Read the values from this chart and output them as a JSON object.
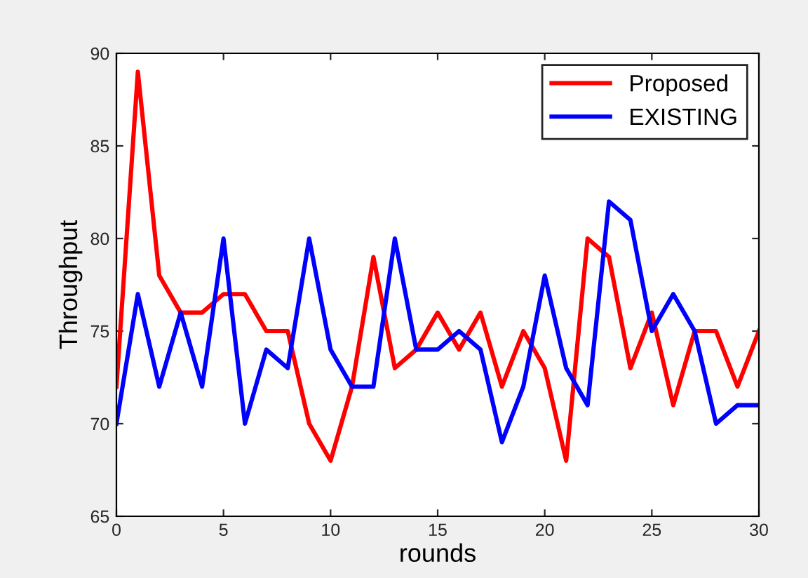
{
  "chart_data": {
    "type": "line",
    "xlabel": "rounds",
    "ylabel": "Throughput",
    "x": [
      0,
      1,
      2,
      3,
      4,
      5,
      6,
      7,
      8,
      9,
      10,
      11,
      12,
      13,
      14,
      15,
      16,
      17,
      18,
      19,
      20,
      21,
      22,
      23,
      24,
      25,
      26,
      27,
      28,
      29,
      30
    ],
    "series": [
      {
        "name": "Proposed",
        "color": "#ff0000",
        "values": [
          72,
          89,
          78,
          76,
          76,
          77,
          77,
          75,
          75,
          70,
          68,
          72,
          79,
          73,
          74,
          76,
          74,
          76,
          72,
          75,
          73,
          68,
          80,
          79,
          73,
          76,
          71,
          75,
          75,
          72,
          75
        ]
      },
      {
        "name": "EXISTING",
        "color": "#0000ff",
        "values": [
          70,
          77,
          72,
          76,
          72,
          80,
          70,
          74,
          73,
          80,
          74,
          72,
          72,
          80,
          74,
          74,
          75,
          74,
          69,
          72,
          78,
          73,
          71,
          82,
          81,
          75,
          77,
          75,
          70,
          71,
          71
        ]
      }
    ],
    "xlim": [
      0,
      30
    ],
    "ylim": [
      65,
      90
    ],
    "xticks": [
      0,
      5,
      10,
      15,
      20,
      25,
      30
    ],
    "yticks": [
      65,
      70,
      75,
      80,
      85,
      90
    ],
    "grid": false,
    "legend": "top right",
    "marker": "none",
    "line_style": "solid"
  }
}
